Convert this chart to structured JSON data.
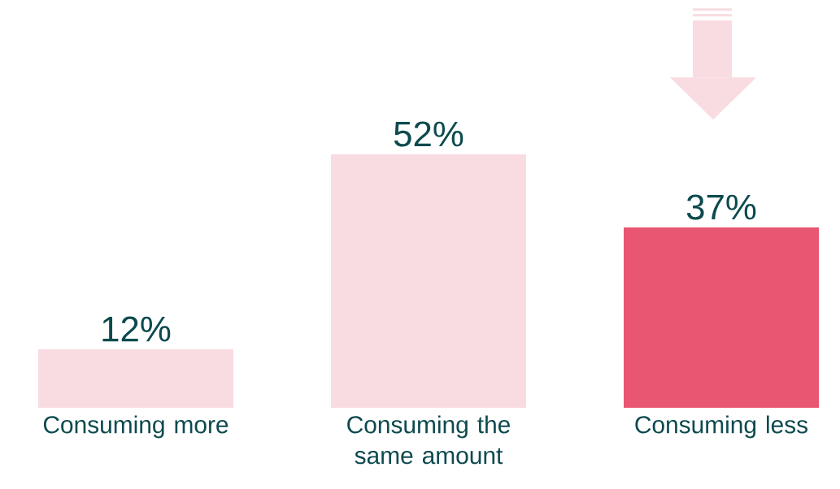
{
  "chart_data": {
    "type": "bar",
    "categories": [
      "Consuming more",
      "Consuming the same amount",
      "Consuming less"
    ],
    "values": [
      12,
      52,
      37
    ],
    "value_labels": [
      "12%",
      "52%",
      "37%"
    ],
    "colors": [
      "#f8dce1",
      "#f8dce1",
      "#e85672"
    ]
  }
}
